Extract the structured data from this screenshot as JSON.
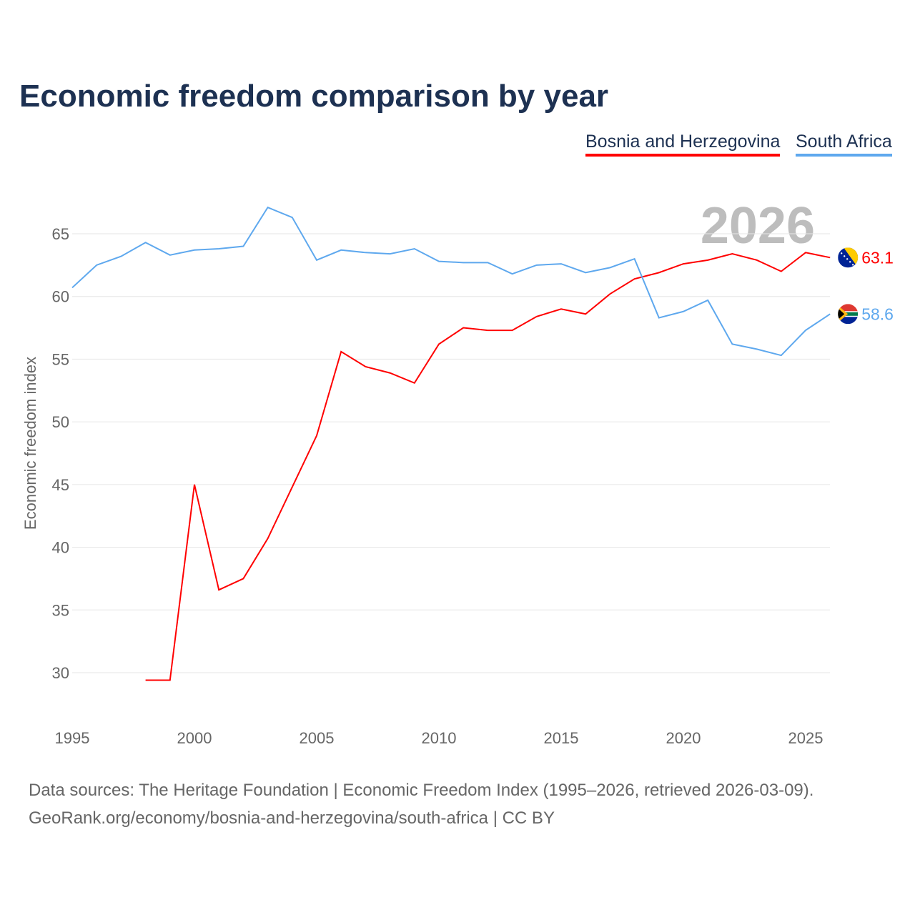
{
  "chart_data": {
    "type": "line",
    "title": "Economic freedom comparison by year",
    "xlabel": "",
    "ylabel": "Economic freedom index",
    "xlim": [
      1995,
      2026
    ],
    "ylim": [
      27.5,
      68
    ],
    "x_ticks": [
      1995,
      2000,
      2005,
      2010,
      2015,
      2020,
      2025
    ],
    "y_ticks": [
      30,
      35,
      40,
      45,
      50,
      55,
      60,
      65
    ],
    "year_label": "2026",
    "legend_position": "top-right",
    "series": [
      {
        "name": "Bosnia and Herzegovina",
        "color": "#ff0000",
        "end_label": "63.1",
        "x": [
          1998,
          1999,
          2000,
          2001,
          2002,
          2003,
          2004,
          2005,
          2006,
          2007,
          2008,
          2009,
          2010,
          2011,
          2012,
          2013,
          2014,
          2015,
          2016,
          2017,
          2018,
          2019,
          2020,
          2021,
          2022,
          2023,
          2024,
          2025,
          2026
        ],
        "values": [
          29.4,
          29.4,
          45.0,
          36.6,
          37.5,
          40.7,
          44.8,
          48.9,
          55.6,
          54.4,
          53.9,
          53.1,
          56.2,
          57.5,
          57.3,
          57.3,
          58.4,
          59.0,
          58.6,
          60.2,
          61.4,
          61.9,
          62.6,
          62.9,
          63.4,
          62.9,
          62.0,
          63.5,
          63.1
        ]
      },
      {
        "name": "South Africa",
        "color": "#5ea8ee",
        "end_label": "58.6",
        "x": [
          1995,
          1996,
          1997,
          1998,
          1999,
          2000,
          2001,
          2002,
          2003,
          2004,
          2005,
          2006,
          2007,
          2008,
          2009,
          2010,
          2011,
          2012,
          2013,
          2014,
          2015,
          2016,
          2017,
          2018,
          2019,
          2020,
          2021,
          2022,
          2023,
          2024,
          2025,
          2026
        ],
        "values": [
          60.7,
          62.5,
          63.2,
          64.3,
          63.3,
          63.7,
          63.8,
          64.0,
          67.1,
          66.3,
          62.9,
          63.7,
          63.5,
          63.4,
          63.8,
          62.8,
          62.7,
          62.7,
          61.8,
          62.5,
          62.6,
          61.9,
          62.3,
          63.0,
          58.3,
          58.8,
          59.7,
          56.2,
          55.8,
          55.3,
          57.3,
          58.6
        ]
      }
    ]
  },
  "source": {
    "line1": "Data sources: The Heritage Foundation | Economic Freedom Index (1995–2026, retrieved 2026-03-09).",
    "line2": "GeoRank.org/economy/bosnia-and-herzegovina/south-africa | CC BY"
  }
}
